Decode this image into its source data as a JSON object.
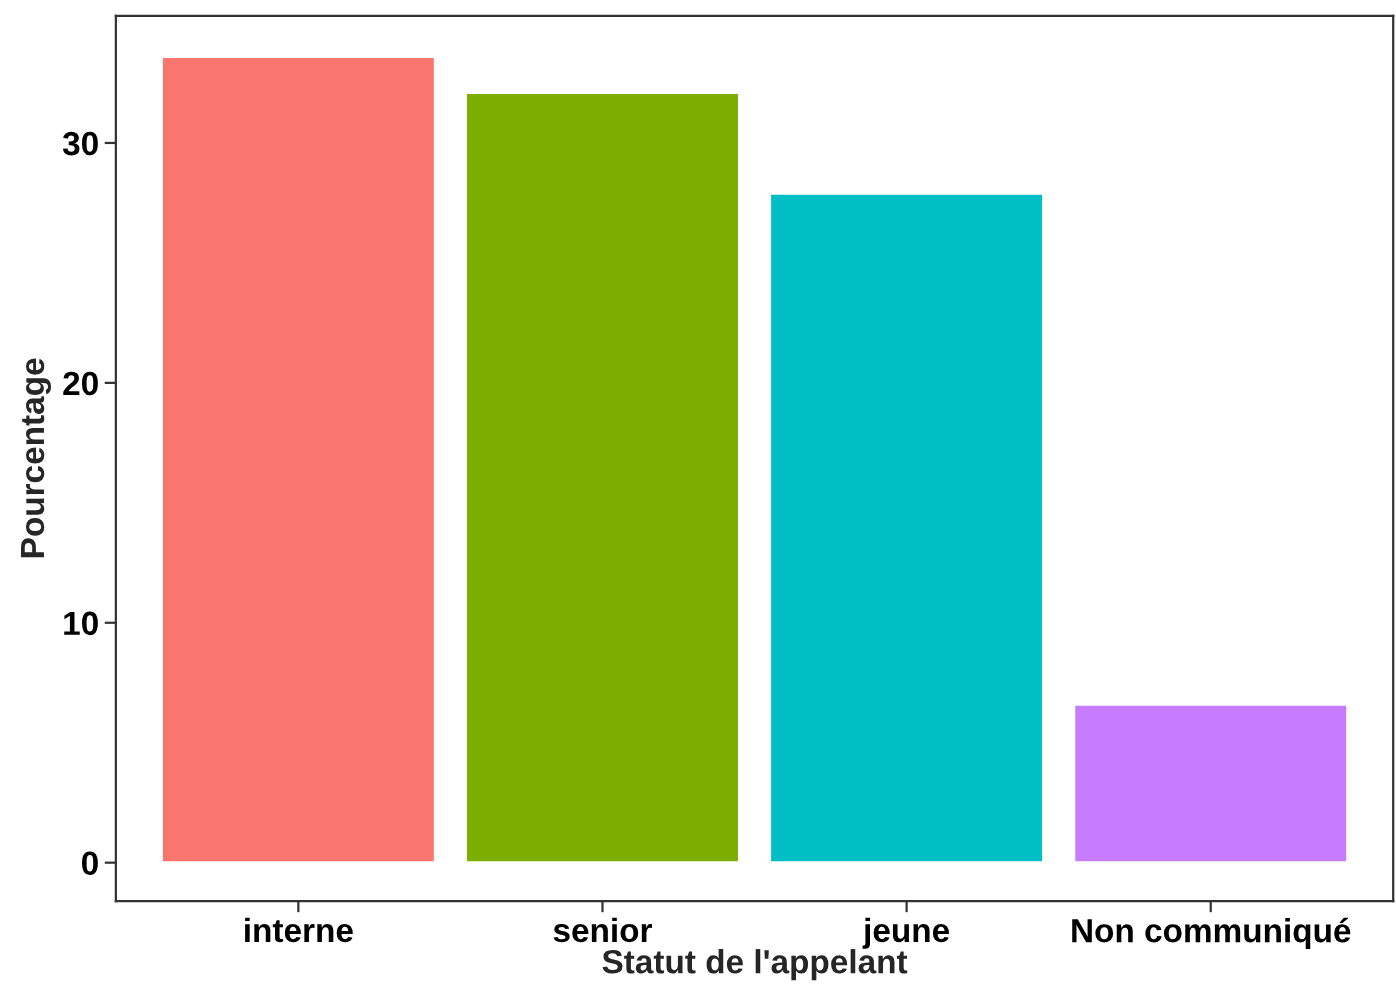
{
  "chart_data": {
    "type": "bar",
    "xlabel": "Statut de l'appelant",
    "ylabel": "Pourcentage",
    "categories": [
      "interne",
      "senior",
      "jeune",
      "Non communiqué"
    ],
    "values": [
      33.6,
      32.1,
      27.9,
      6.6
    ],
    "colors": [
      "#f8766d",
      "#7cae00",
      "#00bfc4",
      "#c77cff"
    ],
    "ylim": [
      -1.6,
      35.3
    ],
    "yticks": [
      0,
      10,
      20,
      30
    ],
    "grid": false,
    "legend": false
  }
}
